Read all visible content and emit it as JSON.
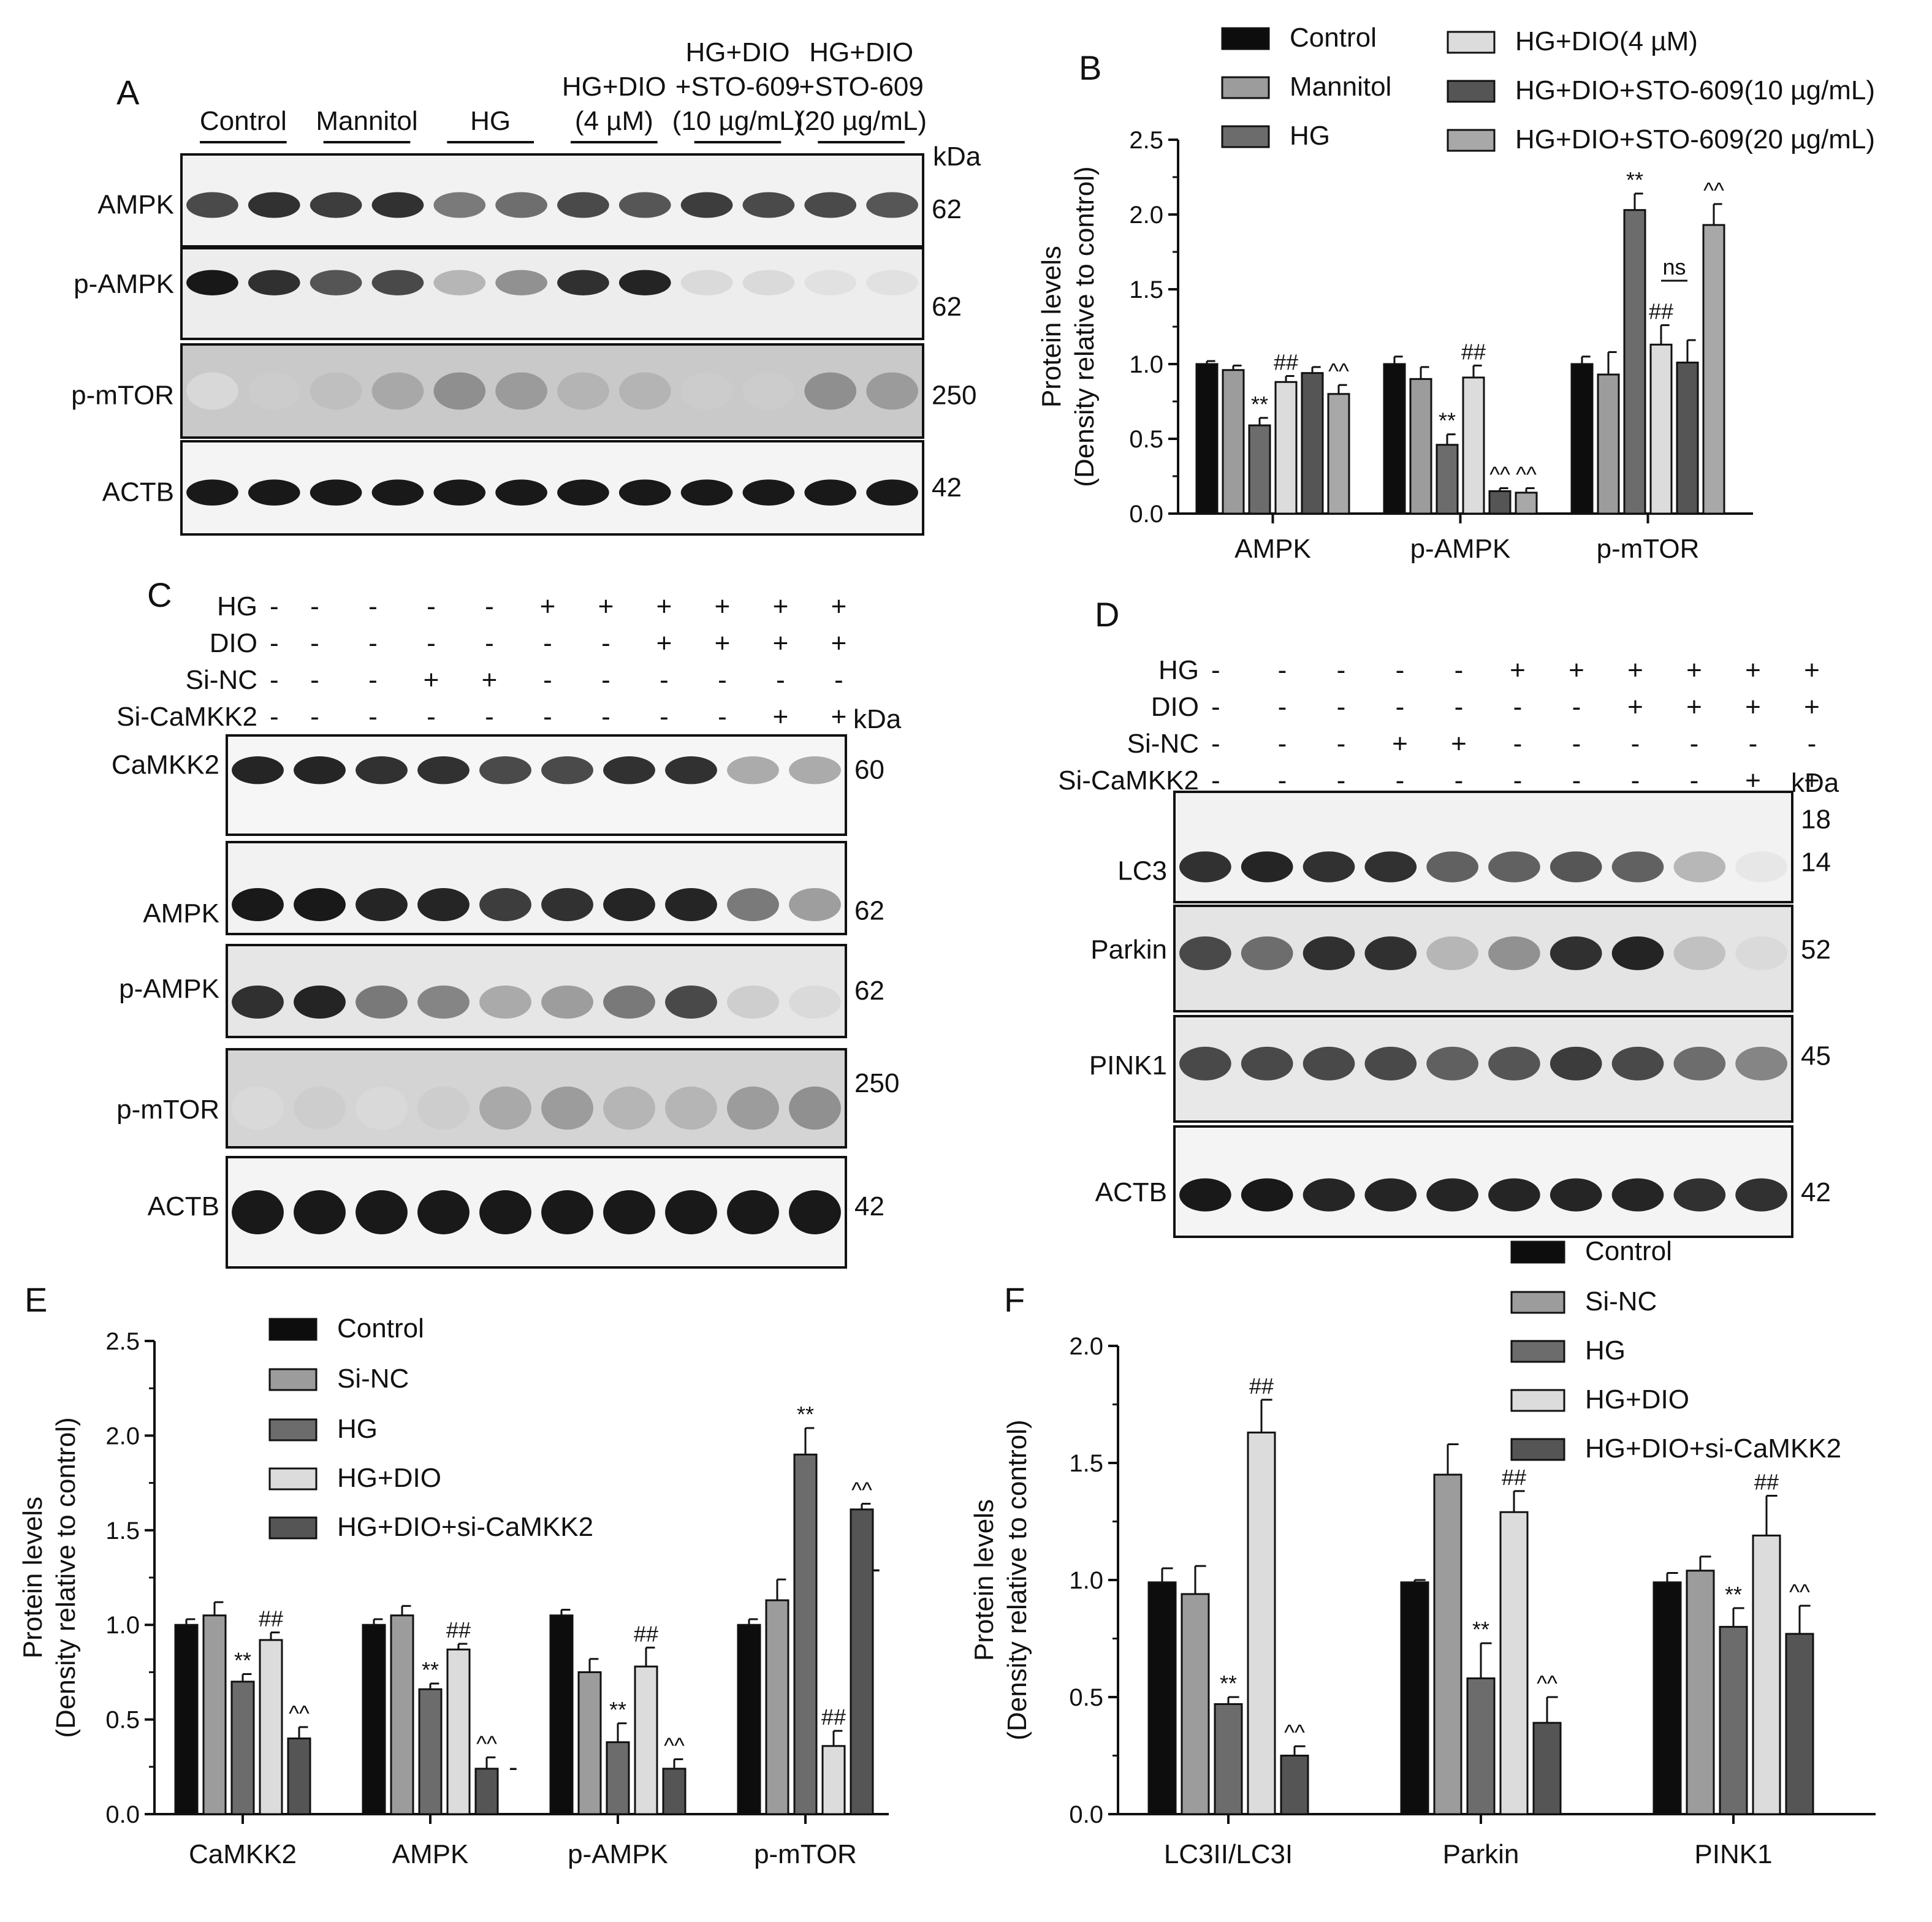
{
  "colors": {
    "black": "#0d0d0d",
    "mid_gray": "#9c9c9c",
    "dark_gray": "#6c6c6c",
    "light_gray": "#dcdcdc",
    "darker_gray": "#555555",
    "gray2": "#a8a8a8"
  },
  "panel_a": {
    "letter": "A",
    "groups": [
      "Control",
      "Mannitol",
      "HG",
      "HG+DIO\n(4 µM)",
      "HG+DIO\n+STO-609\n(10 µg/mL)",
      "HG+DIO\n+STO-609\n(20 µg/mL)"
    ],
    "kda": "kDa",
    "blots": [
      {
        "label": "AMPK",
        "kda": "62",
        "intensities": [
          0.75,
          0.85,
          0.8,
          0.85,
          0.55,
          0.6,
          0.75,
          0.7,
          0.8,
          0.75,
          0.75,
          0.7
        ]
      },
      {
        "label": "p-AMPK",
        "kda": "62",
        "intensities": [
          0.95,
          0.85,
          0.7,
          0.75,
          0.3,
          0.45,
          0.85,
          0.9,
          0.15,
          0.15,
          0.12,
          0.12
        ]
      },
      {
        "label": "p-mTOR",
        "kda": "250",
        "intensities": [
          0.15,
          0.2,
          0.25,
          0.35,
          0.45,
          0.4,
          0.3,
          0.3,
          0.2,
          0.2,
          0.45,
          0.4
        ]
      },
      {
        "label": "ACTB",
        "kda": "42",
        "intensities": [
          0.95,
          0.95,
          0.95,
          0.95,
          0.95,
          0.95,
          0.95,
          0.95,
          0.95,
          0.95,
          0.95,
          0.95
        ]
      }
    ]
  },
  "panel_c": {
    "letter": "C",
    "kda": "kDa",
    "conditions": [
      {
        "name": "HG",
        "signs": [
          "-",
          "-",
          "-",
          "-",
          "+",
          "+",
          "+",
          "+",
          "+",
          "+"
        ]
      },
      {
        "name": "DIO",
        "signs": [
          "-",
          "-",
          "-",
          "-",
          "-",
          "-",
          "+",
          "+",
          "+",
          "+"
        ]
      },
      {
        "name": "Si-NC",
        "signs": [
          "-",
          "-",
          "+",
          "+",
          "-",
          "-",
          "-",
          "-",
          "-",
          "-"
        ]
      },
      {
        "name": "Si-CaMKK2",
        "signs": [
          "-",
          "-",
          "-",
          "-",
          "-",
          "-",
          "-",
          "-",
          "+",
          "+"
        ]
      }
    ],
    "blots": [
      {
        "label": "CaMKK2",
        "kda": "60",
        "intensities": [
          0.9,
          0.9,
          0.85,
          0.85,
          0.75,
          0.75,
          0.85,
          0.85,
          0.35,
          0.35
        ]
      },
      {
        "label": "AMPK",
        "kda": "62",
        "intensities": [
          0.95,
          0.95,
          0.9,
          0.9,
          0.8,
          0.85,
          0.9,
          0.9,
          0.55,
          0.4
        ]
      },
      {
        "label": "p-AMPK",
        "kda": "62",
        "intensities": [
          0.85,
          0.9,
          0.55,
          0.5,
          0.35,
          0.4,
          0.55,
          0.75,
          0.2,
          0.15
        ]
      },
      {
        "label": "p-mTOR",
        "kda": "250",
        "intensities": [
          0.15,
          0.2,
          0.15,
          0.2,
          0.35,
          0.4,
          0.3,
          0.3,
          0.4,
          0.45
        ]
      },
      {
        "label": "ACTB",
        "kda": "42",
        "intensities": [
          0.95,
          0.95,
          0.95,
          0.95,
          0.95,
          0.95,
          0.95,
          0.95,
          0.95,
          0.95
        ]
      }
    ]
  },
  "panel_d": {
    "letter": "D",
    "kda": "kDa",
    "conditions": [
      {
        "name": "HG",
        "signs": [
          "-",
          "-",
          "-",
          "-",
          "+",
          "+",
          "+",
          "+",
          "+",
          "+"
        ]
      },
      {
        "name": "DIO",
        "signs": [
          "-",
          "-",
          "-",
          "-",
          "-",
          "-",
          "+",
          "+",
          "+",
          "+"
        ]
      },
      {
        "name": "Si-NC",
        "signs": [
          "-",
          "-",
          "+",
          "+",
          "-",
          "-",
          "-",
          "-",
          "-",
          "-"
        ]
      },
      {
        "name": "Si-CaMKK2",
        "signs": [
          "-",
          "-",
          "-",
          "-",
          "-",
          "-",
          "-",
          "-",
          "+",
          "+"
        ]
      }
    ],
    "blots": [
      {
        "label": "LC3",
        "kda": "18",
        "kda2": "14",
        "intensities": [
          0.85,
          0.9,
          0.85,
          0.85,
          0.65,
          0.65,
          0.7,
          0.65,
          0.3,
          0.1
        ]
      },
      {
        "label": "Parkin",
        "kda": "52",
        "intensities": [
          0.75,
          0.6,
          0.85,
          0.85,
          0.3,
          0.45,
          0.85,
          0.9,
          0.25,
          0.15
        ]
      },
      {
        "label": "PINK1",
        "kda": "45",
        "intensities": [
          0.75,
          0.75,
          0.75,
          0.75,
          0.65,
          0.7,
          0.8,
          0.75,
          0.6,
          0.5
        ]
      },
      {
        "label": "ACTB",
        "kda": "42",
        "intensities": [
          0.95,
          0.95,
          0.9,
          0.9,
          0.9,
          0.9,
          0.9,
          0.9,
          0.85,
          0.85
        ]
      }
    ]
  },
  "chart_data": [
    {
      "panel": "B",
      "type": "bar",
      "ylabel": "Protein levels",
      "ylabel2": "(Density relative to control)",
      "ylim": [
        0,
        2.5
      ],
      "yticks": [
        "0.0",
        "0.5",
        "1.0",
        "1.5",
        "2.0",
        "2.5"
      ],
      "categories": [
        "AMPK",
        "p-AMPK",
        "p-mTOR"
      ],
      "series": [
        {
          "name": "Control",
          "color": "#0d0d0d",
          "values": [
            1.0,
            1.0,
            1.0
          ],
          "errors": [
            0.02,
            0.05,
            0.05
          ]
        },
        {
          "name": "Mannitol",
          "color": "#9c9c9c",
          "values": [
            0.96,
            0.9,
            0.93
          ],
          "errors": [
            0.03,
            0.08,
            0.15
          ]
        },
        {
          "name": "HG",
          "color": "#6c6c6c",
          "values": [
            0.59,
            0.46,
            2.03
          ],
          "errors": [
            0.05,
            0.07,
            0.11
          ]
        },
        {
          "name": "HG+DIO(4 µM)",
          "color": "#dcdcdc",
          "values": [
            0.88,
            0.91,
            1.13
          ],
          "errors": [
            0.04,
            0.08,
            0.13
          ]
        },
        {
          "name": "HG+DIO+STO-609(10 µg/mL)",
          "color": "#555555",
          "values": [
            0.94,
            0.15,
            1.01
          ],
          "errors": [
            0.04,
            0.02,
            0.15
          ]
        },
        {
          "name": "HG+DIO+STO-609(20 µg/mL)",
          "color": "#a8a8a8",
          "values": [
            0.8,
            0.14,
            1.93
          ],
          "errors": [
            0.06,
            0.03,
            0.14
          ]
        }
      ],
      "annotations": [
        {
          "cat": 0,
          "series": 2,
          "text": "**"
        },
        {
          "cat": 0,
          "series": 3,
          "text": "##"
        },
        {
          "cat": 0,
          "series": 5,
          "text": "^^"
        },
        {
          "cat": 1,
          "series": 2,
          "text": "**"
        },
        {
          "cat": 1,
          "series": 3,
          "text": "##"
        },
        {
          "cat": 1,
          "series": 4,
          "text": "^^"
        },
        {
          "cat": 1,
          "series": 5,
          "text": "^^"
        },
        {
          "cat": 2,
          "series": 2,
          "text": "**"
        },
        {
          "cat": 2,
          "series": 3,
          "text": "##"
        },
        {
          "cat": 2,
          "series": 5,
          "text": "^^"
        }
      ],
      "ns_label": "ns"
    },
    {
      "panel": "E",
      "type": "bar",
      "ylabel": "Protein levels",
      "ylabel2": "(Density relative to control)",
      "ylim": [
        0,
        2.5
      ],
      "yticks": [
        "0.0",
        "0.5",
        "1.0",
        "1.5",
        "2.0",
        "2.5"
      ],
      "categories": [
        "CaMKK2",
        "AMPK",
        "p-AMPK",
        "p-mTOR"
      ],
      "series": [
        {
          "name": "Control",
          "color": "#0d0d0d",
          "values": [
            1.0,
            1.0,
            1.05,
            1.0
          ],
          "errors": [
            0.03,
            0.03,
            0.03,
            0.03
          ]
        },
        {
          "name": "Si-NC",
          "color": "#9c9c9c",
          "values": [
            1.05,
            1.05,
            0.75,
            1.13
          ],
          "errors": [
            0.07,
            0.05,
            0.07,
            0.11
          ]
        },
        {
          "name": "HG",
          "color": "#6c6c6c",
          "values": [
            0.7,
            0.66,
            0.38,
            1.9
          ],
          "errors": [
            0.04,
            0.03,
            0.1,
            0.14
          ]
        },
        {
          "name": "HG+DIO",
          "color": "#dcdcdc",
          "values": [
            0.92,
            0.87,
            0.78,
            0.36
          ],
          "errors": [
            0.04,
            0.03,
            0.1,
            0.08
          ]
        },
        {
          "name": "HG+DIO+si-CaMKK2",
          "color": "#555555",
          "values": [
            0.4,
            0.24,
            0.24,
            1.61
          ],
          "errors": [
            0.06,
            0.06,
            0.05,
            0.03
          ]
        }
      ],
      "annotations": [
        {
          "cat": 0,
          "series": 2,
          "text": "**"
        },
        {
          "cat": 0,
          "series": 3,
          "text": "##"
        },
        {
          "cat": 0,
          "series": 4,
          "text": "^^"
        },
        {
          "cat": 1,
          "series": 2,
          "text": "**"
        },
        {
          "cat": 1,
          "series": 3,
          "text": "##"
        },
        {
          "cat": 1,
          "series": 4,
          "text": "^^"
        },
        {
          "cat": 2,
          "series": 2,
          "text": "**"
        },
        {
          "cat": 2,
          "series": 3,
          "text": "##"
        },
        {
          "cat": 2,
          "series": 4,
          "text": "^^"
        },
        {
          "cat": 3,
          "series": 2,
          "text": "**"
        },
        {
          "cat": 3,
          "series": 3,
          "text": "##"
        },
        {
          "cat": 3,
          "series": 4,
          "text": "^^"
        }
      ]
    },
    {
      "panel": "F",
      "type": "bar",
      "ylabel": "Protein levels",
      "ylabel2": "(Density relative to control)",
      "ylim": [
        0,
        2.0
      ],
      "yticks": [
        "0.0",
        "0.5",
        "1.0",
        "1.5",
        "2.0"
      ],
      "categories": [
        "LC3II/LC3I",
        "Parkin",
        "PINK1"
      ],
      "series": [
        {
          "name": "Control",
          "color": "#0d0d0d",
          "values": [
            0.99,
            0.99,
            0.99
          ],
          "errors": [
            0.06,
            0.01,
            0.04
          ]
        },
        {
          "name": "Si-NC",
          "color": "#9c9c9c",
          "values": [
            0.94,
            1.45,
            1.04
          ],
          "errors": [
            0.12,
            0.13,
            0.06
          ]
        },
        {
          "name": "HG",
          "color": "#6c6c6c",
          "values": [
            0.47,
            0.58,
            0.8
          ],
          "errors": [
            0.03,
            0.15,
            0.08
          ]
        },
        {
          "name": "HG+DIO",
          "color": "#dcdcdc",
          "values": [
            1.63,
            1.29,
            1.19
          ],
          "errors": [
            0.14,
            0.09,
            0.17
          ]
        },
        {
          "name": "HG+DIO+si-CaMKK2",
          "color": "#555555",
          "values": [
            0.25,
            0.39,
            0.77
          ],
          "errors": [
            0.04,
            0.11,
            0.12
          ]
        }
      ],
      "annotations": [
        {
          "cat": 0,
          "series": 2,
          "text": "**"
        },
        {
          "cat": 0,
          "series": 3,
          "text": "##"
        },
        {
          "cat": 0,
          "series": 4,
          "text": "^^"
        },
        {
          "cat": 1,
          "series": 2,
          "text": "**"
        },
        {
          "cat": 1,
          "series": 3,
          "text": "##"
        },
        {
          "cat": 1,
          "series": 4,
          "text": "^^"
        },
        {
          "cat": 2,
          "series": 2,
          "text": "**"
        },
        {
          "cat": 2,
          "series": 3,
          "text": "##"
        },
        {
          "cat": 2,
          "series": 4,
          "text": "^^"
        }
      ]
    }
  ]
}
